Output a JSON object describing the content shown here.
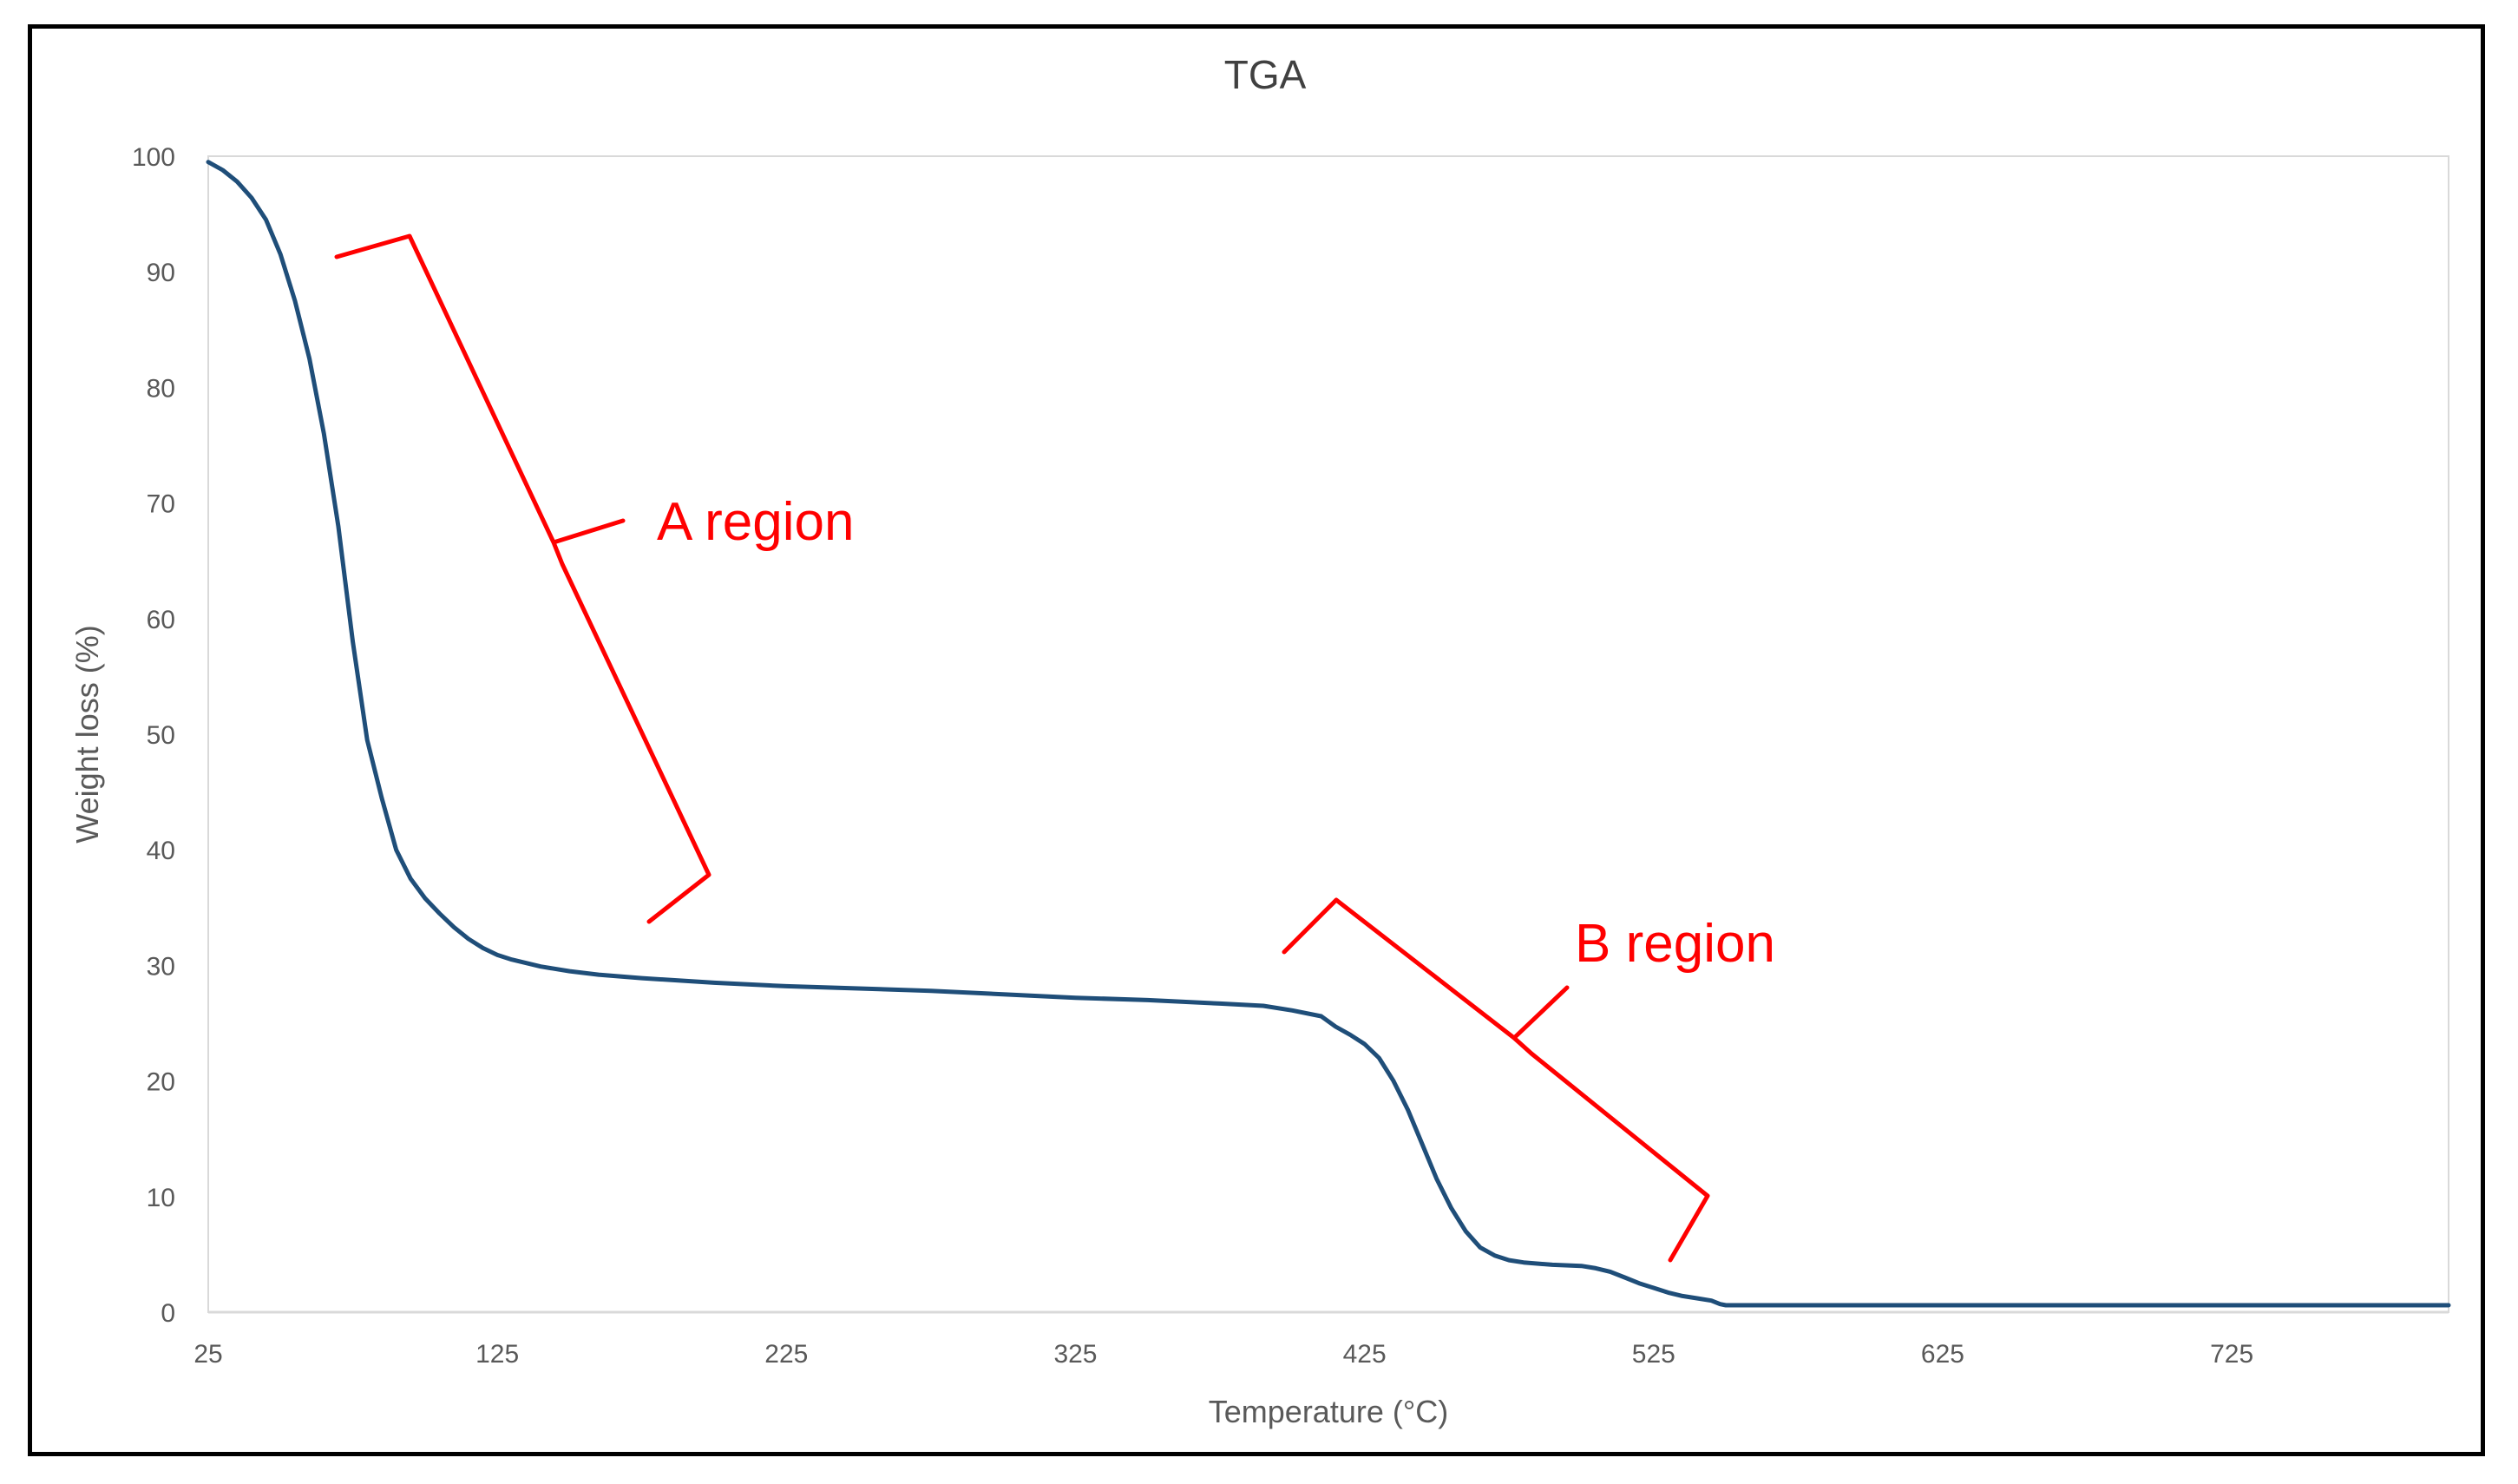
{
  "chart_data": {
    "type": "line",
    "title": "TGA",
    "xlabel": "Temperature (°C)",
    "ylabel": "Weight loss (%)",
    "xlim": [
      25,
      800
    ],
    "ylim": [
      0,
      100
    ],
    "xticks": [
      25,
      125,
      225,
      325,
      425,
      525,
      625,
      725
    ],
    "yticks": [
      0,
      10,
      20,
      30,
      40,
      50,
      60,
      70,
      80,
      90,
      100
    ],
    "grid": false,
    "line_color": "#1f4e79",
    "annotation_color": "#ff0000",
    "series": [
      {
        "x": [
          25,
          30,
          35,
          40,
          45,
          50,
          55,
          60,
          65,
          70,
          75,
          80,
          85,
          90,
          95,
          100,
          105,
          110,
          115,
          120,
          125,
          130,
          135,
          140,
          150,
          160,
          175,
          200,
          225,
          250,
          275,
          300,
          325,
          350,
          375,
          390,
          400,
          410,
          415,
          420,
          425,
          430,
          435,
          440,
          445,
          450,
          455,
          460,
          465,
          470,
          475,
          480,
          490,
          500,
          505,
          510,
          515,
          520,
          525,
          530,
          535,
          540,
          545,
          548,
          550,
          555,
          600,
          650,
          700,
          750,
          800
        ],
        "y": [
          99.5,
          98.8,
          97.8,
          96.4,
          94.5,
          91.5,
          87.5,
          82.5,
          76.0,
          68.0,
          58.0,
          49.5,
          44.5,
          40.0,
          37.5,
          35.8,
          34.5,
          33.3,
          32.3,
          31.5,
          30.9,
          30.5,
          30.2,
          29.9,
          29.5,
          29.2,
          28.9,
          28.5,
          28.2,
          28.0,
          27.8,
          27.5,
          27.2,
          27.0,
          26.7,
          26.5,
          26.1,
          25.6,
          24.7,
          24.0,
          23.2,
          22.0,
          20.0,
          17.5,
          14.5,
          11.5,
          9.0,
          7.0,
          5.6,
          4.9,
          4.5,
          4.3,
          4.1,
          4.0,
          3.8,
          3.5,
          3.0,
          2.5,
          2.1,
          1.7,
          1.4,
          1.2,
          1.0,
          0.7,
          0.6,
          0.6,
          0.6,
          0.6,
          0.6,
          0.6,
          0.6
        ]
      }
    ],
    "annotations": [
      {
        "text": "A region"
      },
      {
        "text": "B region"
      }
    ]
  }
}
